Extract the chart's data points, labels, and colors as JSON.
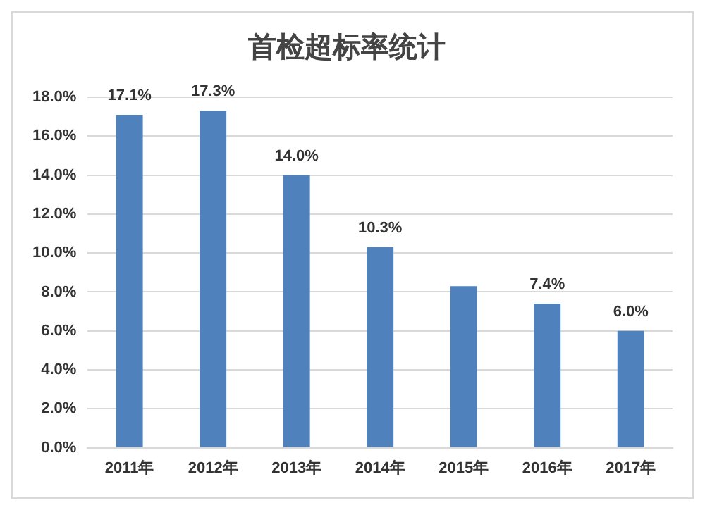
{
  "chart_data": {
    "type": "bar",
    "title": "首检超标率统计",
    "categories": [
      "2011年",
      "2012年",
      "2013年",
      "2014年",
      "2015年",
      "2016年",
      "2017年"
    ],
    "values": [
      17.1,
      17.3,
      14.0,
      10.3,
      8.3,
      7.4,
      6.0
    ],
    "value_labels": [
      "17.1%",
      "17.3%",
      "14.0%",
      "10.3%",
      null,
      "7.4%",
      "6.0%"
    ],
    "color": "#4f81bd",
    "ylim": [
      0,
      18
    ],
    "yticks": [
      {
        "value": 0,
        "label": "0.0%"
      },
      {
        "value": 2,
        "label": "2.0%"
      },
      {
        "value": 4,
        "label": "4.0%"
      },
      {
        "value": 6,
        "label": "6.0%"
      },
      {
        "value": 8,
        "label": "8.0%"
      },
      {
        "value": 10,
        "label": "10.0%"
      },
      {
        "value": 12,
        "label": "12.0%"
      },
      {
        "value": 14,
        "label": "14.0%"
      },
      {
        "value": 16,
        "label": "16.0%"
      },
      {
        "value": 18,
        "label": "18.0%"
      }
    ],
    "grid": "y",
    "legend": false
  }
}
